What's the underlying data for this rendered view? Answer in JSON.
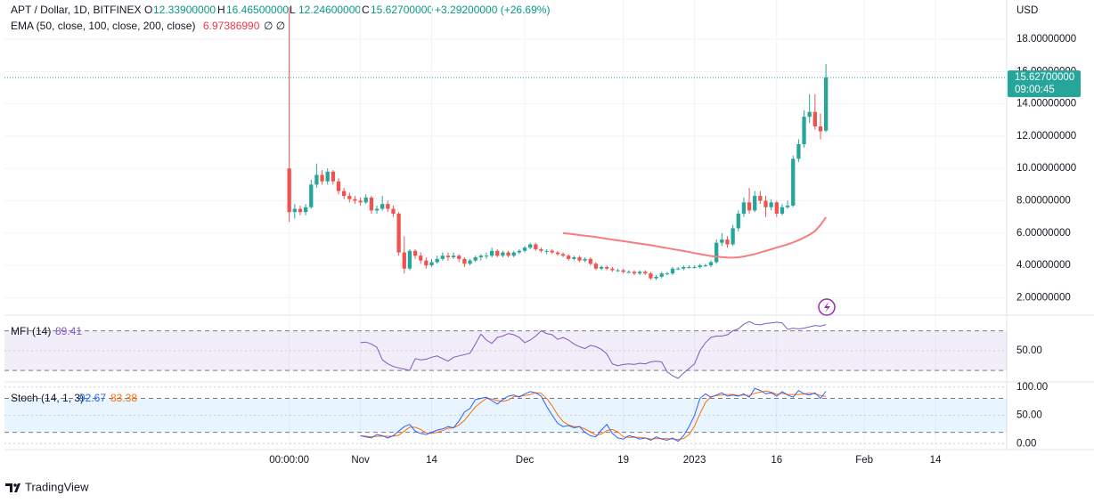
{
  "header": {
    "symbol": "APT / Dollar, 1D, BITFINEX",
    "o_label": "O",
    "o": "12.33900000",
    "h_label": "H",
    "h": "16.46500000",
    "l_label": "L",
    "l": "12.24600000",
    "c_label": "C",
    "c": "15.62700000",
    "change": "+3.29200000 (+26.69%)",
    "ema_label": "EMA (50, close, 100, close, 200, close)",
    "ema_value": "6.97386990",
    "ema_extra": "∅ ∅",
    "currency": "USD"
  },
  "price_tag": {
    "price": "15.62700000",
    "countdown": "09:00:45"
  },
  "chart_data": {
    "type": "candlestick",
    "colors": {
      "up": "#26a69a",
      "down": "#ef5350"
    },
    "xlim": [
      -52,
      131
    ],
    "xticks": [
      {
        "value": 0,
        "label": "00:00:00"
      },
      {
        "value": 13,
        "label": "Nov"
      },
      {
        "value": 26,
        "label": "14"
      },
      {
        "value": 43,
        "label": "Dec"
      },
      {
        "value": 61,
        "label": "19"
      },
      {
        "value": 74,
        "label": "2023"
      },
      {
        "value": 89,
        "label": "16"
      },
      {
        "value": 105,
        "label": "Feb"
      },
      {
        "value": 118,
        "label": "14"
      }
    ],
    "ylim": [
      1.03,
      20.15
    ],
    "yticks": [
      {
        "value": 2,
        "label": "2.00000000"
      },
      {
        "value": 4,
        "label": "4.00000000"
      },
      {
        "value": 6,
        "label": "6.00000000"
      },
      {
        "value": 8,
        "label": "8.00000000"
      },
      {
        "value": 10,
        "label": "10.00000000"
      },
      {
        "value": 12,
        "label": "12.00000000"
      },
      {
        "value": 14,
        "label": "14.00000000"
      },
      {
        "value": 16,
        "label": "16.00000000"
      },
      {
        "value": 18,
        "label": "18.00000000"
      }
    ],
    "grid": true,
    "ohlc": [
      [
        10.0,
        20.0,
        6.7,
        7.3
      ],
      [
        7.3,
        7.8,
        6.9,
        7.5
      ],
      [
        7.5,
        7.7,
        7.1,
        7.3
      ],
      [
        7.3,
        7.8,
        7.1,
        7.6
      ],
      [
        7.6,
        9.3,
        7.5,
        9.0
      ],
      [
        9.0,
        10.3,
        8.8,
        9.6
      ],
      [
        9.6,
        9.9,
        9.0,
        9.2
      ],
      [
        9.2,
        10.0,
        9.0,
        9.8
      ],
      [
        9.8,
        9.9,
        9.0,
        9.2
      ],
      [
        9.2,
        9.4,
        8.4,
        8.6
      ],
      [
        8.6,
        8.8,
        8.1,
        8.3
      ],
      [
        8.3,
        8.5,
        7.9,
        8.1
      ],
      [
        8.1,
        8.3,
        7.8,
        8.0
      ],
      [
        8.0,
        8.2,
        7.7,
        7.9
      ],
      [
        7.9,
        8.4,
        7.8,
        8.2
      ],
      [
        8.2,
        8.3,
        7.2,
        7.4
      ],
      [
        7.4,
        7.7,
        7.2,
        7.5
      ],
      [
        7.5,
        8.3,
        7.4,
        7.8
      ],
      [
        7.8,
        8.0,
        7.3,
        7.5
      ],
      [
        7.5,
        7.7,
        7.0,
        7.2
      ],
      [
        7.2,
        7.3,
        4.6,
        4.8
      ],
      [
        4.8,
        5.8,
        3.5,
        3.8
      ],
      [
        3.8,
        5.0,
        3.7,
        4.9
      ],
      [
        4.9,
        5.0,
        4.4,
        4.6
      ],
      [
        4.6,
        4.8,
        4.1,
        4.3
      ],
      [
        4.3,
        4.5,
        3.8,
        4.0
      ],
      [
        4.0,
        4.4,
        3.9,
        4.2
      ],
      [
        4.2,
        4.6,
        4.1,
        4.4
      ],
      [
        4.4,
        4.8,
        4.3,
        4.6
      ],
      [
        4.6,
        4.8,
        4.3,
        4.5
      ],
      [
        4.5,
        4.8,
        4.4,
        4.6
      ],
      [
        4.6,
        4.7,
        4.2,
        4.4
      ],
      [
        4.4,
        4.5,
        3.9,
        4.1
      ],
      [
        4.1,
        4.4,
        4.0,
        4.3
      ],
      [
        4.3,
        4.6,
        4.2,
        4.5
      ],
      [
        4.5,
        4.7,
        4.3,
        4.6
      ],
      [
        4.6,
        4.8,
        4.4,
        4.6
      ],
      [
        4.6,
        5.1,
        4.5,
        4.9
      ],
      [
        4.9,
        5.0,
        4.5,
        4.6
      ],
      [
        4.6,
        4.9,
        4.5,
        4.8
      ],
      [
        4.8,
        4.9,
        4.5,
        4.6
      ],
      [
        4.6,
        4.9,
        4.5,
        4.8
      ],
      [
        4.8,
        5.0,
        4.7,
        4.9
      ],
      [
        4.9,
        5.2,
        4.8,
        5.1
      ],
      [
        5.1,
        5.4,
        5.0,
        5.3
      ],
      [
        5.3,
        5.4,
        4.9,
        5.0
      ],
      [
        5.0,
        5.1,
        4.8,
        4.9
      ],
      [
        4.9,
        5.0,
        4.7,
        4.9
      ],
      [
        4.9,
        5.0,
        4.7,
        4.8
      ],
      [
        4.8,
        4.9,
        4.6,
        4.7
      ],
      [
        4.7,
        4.8,
        4.5,
        4.6
      ],
      [
        4.6,
        4.7,
        4.3,
        4.4
      ],
      [
        4.4,
        4.6,
        4.3,
        4.5
      ],
      [
        4.5,
        4.6,
        4.2,
        4.3
      ],
      [
        4.3,
        4.5,
        4.2,
        4.4
      ],
      [
        4.4,
        4.5,
        4.0,
        4.1
      ],
      [
        4.1,
        4.2,
        3.7,
        3.8
      ],
      [
        3.8,
        4.0,
        3.7,
        3.9
      ],
      [
        3.9,
        4.0,
        3.7,
        3.8
      ],
      [
        3.8,
        3.9,
        3.6,
        3.7
      ],
      [
        3.7,
        3.8,
        3.6,
        3.7
      ],
      [
        3.7,
        3.8,
        3.5,
        3.6
      ],
      [
        3.6,
        3.7,
        3.5,
        3.6
      ],
      [
        3.6,
        3.7,
        3.4,
        3.5
      ],
      [
        3.5,
        3.7,
        3.4,
        3.6
      ],
      [
        3.6,
        3.7,
        3.4,
        3.5
      ],
      [
        3.5,
        3.6,
        3.1,
        3.2
      ],
      [
        3.2,
        3.4,
        3.1,
        3.3
      ],
      [
        3.3,
        3.6,
        3.2,
        3.5
      ],
      [
        3.5,
        3.6,
        3.4,
        3.5
      ],
      [
        3.5,
        3.9,
        3.4,
        3.8
      ],
      [
        3.8,
        3.9,
        3.7,
        3.8
      ],
      [
        3.8,
        4.0,
        3.7,
        3.9
      ],
      [
        3.9,
        4.0,
        3.8,
        3.9
      ],
      [
        3.9,
        4.0,
        3.8,
        3.9
      ],
      [
        3.9,
        4.1,
        3.8,
        4.0
      ],
      [
        4.0,
        4.1,
        3.9,
        4.0
      ],
      [
        4.0,
        4.3,
        3.9,
        4.2
      ],
      [
        4.2,
        5.6,
        4.1,
        5.4
      ],
      [
        5.4,
        6.0,
        5.2,
        5.6
      ],
      [
        5.6,
        5.8,
        5.1,
        5.3
      ],
      [
        5.3,
        6.5,
        5.2,
        6.3
      ],
      [
        6.3,
        7.4,
        6.1,
        7.2
      ],
      [
        7.2,
        8.2,
        7.0,
        7.9
      ],
      [
        7.9,
        8.8,
        7.2,
        7.4
      ],
      [
        7.4,
        8.6,
        7.3,
        8.3
      ],
      [
        8.3,
        8.6,
        7.8,
        8.0
      ],
      [
        8.0,
        8.3,
        7.0,
        7.6
      ],
      [
        7.6,
        8.1,
        7.4,
        7.9
      ],
      [
        7.9,
        8.0,
        7.0,
        7.2
      ],
      [
        7.2,
        7.8,
        7.1,
        7.6
      ],
      [
        7.6,
        8.0,
        7.5,
        7.7
      ],
      [
        7.7,
        10.8,
        7.6,
        10.6
      ],
      [
        10.6,
        11.8,
        10.4,
        11.5
      ],
      [
        11.5,
        13.6,
        11.3,
        13.2
      ],
      [
        13.2,
        14.6,
        12.8,
        13.5
      ],
      [
        13.5,
        14.6,
        12.4,
        12.6
      ],
      [
        12.6,
        13.4,
        11.8,
        12.3
      ],
      [
        12.339,
        16.465,
        12.246,
        15.627
      ]
    ],
    "series": [
      {
        "name": "EMA",
        "color": "#f77c80",
        "values": [
          null,
          null,
          null,
          null,
          null,
          null,
          null,
          null,
          null,
          null,
          null,
          null,
          null,
          null,
          null,
          null,
          null,
          null,
          null,
          null,
          null,
          null,
          null,
          null,
          null,
          null,
          null,
          null,
          null,
          null,
          null,
          null,
          null,
          null,
          null,
          null,
          null,
          null,
          null,
          null,
          null,
          null,
          null,
          null,
          null,
          null,
          null,
          null,
          null,
          null,
          6.0,
          5.96,
          5.92,
          5.88,
          5.84,
          5.8,
          5.75,
          5.7,
          5.65,
          5.6,
          5.55,
          5.5,
          5.45,
          5.4,
          5.35,
          5.3,
          5.25,
          5.19,
          5.13,
          5.07,
          5.01,
          4.95,
          4.89,
          4.83,
          4.76,
          4.7,
          4.64,
          4.58,
          4.54,
          4.51,
          4.49,
          4.48,
          4.5,
          4.55,
          4.62,
          4.7,
          4.8,
          4.9,
          5.0,
          5.1,
          5.2,
          5.3,
          5.42,
          5.56,
          5.72,
          5.9,
          6.12,
          6.5,
          6.9738699
        ]
      }
    ],
    "indicators": [
      {
        "name": "MFI (14)",
        "value_label": "89.41",
        "color": "#7e57c2",
        "band_color": "rgba(126,87,194,0.1)",
        "ylim": [
          4,
          101
        ],
        "levels": [
          80,
          20
        ],
        "yticks": [
          {
            "value": 50,
            "label": "50.00"
          }
        ],
        "series": [
          {
            "name": "MFI",
            "color": "#7e57c2",
            "values": [
              null,
              null,
              null,
              null,
              null,
              null,
              null,
              null,
              null,
              null,
              null,
              null,
              null,
              62,
              63,
              60,
              55,
              36,
              30,
              26,
              24,
              22,
              20,
              38,
              36,
              37,
              40,
              42,
              38,
              34,
              40,
              42,
              44,
              46,
              60,
              75,
              66,
              61,
              70,
              72,
              76,
              74,
              70,
              62,
              66,
              72,
              80,
              76,
              74,
              67,
              70,
              66,
              60,
              56,
              53,
              58,
              56,
              52,
              45,
              30,
              27,
              29,
              30,
              29,
              31,
              30,
              33,
              34,
              33,
              18,
              12,
              8,
              16,
              23,
              30,
              50,
              62,
              70,
              72,
              72,
              74,
              80,
              83,
              90,
              94,
              90,
              89,
              91,
              92,
              93,
              92,
              82,
              84,
              83,
              84,
              86,
              88,
              87,
              89.41
            ]
          }
        ]
      },
      {
        "name": "Stoch (14, 1, 3)",
        "value_label": "92.67",
        "value_label2": "83.38",
        "color": "#2962ff",
        "band_color": "rgba(33,150,243,0.1)",
        "ylim": [
          -9,
          106
        ],
        "levels": [
          80,
          20
        ],
        "yticks": [
          {
            "value": 100,
            "label": "100.00"
          },
          {
            "value": 50,
            "label": "50.00"
          },
          {
            "value": 0,
            "label": "0.00"
          }
        ],
        "series": [
          {
            "name": "%K",
            "color": "#2962ff",
            "values": [
              null,
              null,
              null,
              null,
              null,
              null,
              null,
              null,
              null,
              null,
              null,
              null,
              null,
              14,
              12,
              10,
              16,
              14,
              10,
              14,
              22,
              30,
              34,
              22,
              18,
              16,
              20,
              24,
              26,
              30,
              28,
              40,
              56,
              62,
              78,
              80,
              82,
              76,
              70,
              78,
              84,
              86,
              82,
              88,
              92,
              90,
              84,
              66,
              50,
              36,
              30,
              32,
              28,
              30,
              20,
              14,
              12,
              24,
              34,
              18,
              10,
              8,
              14,
              12,
              8,
              10,
              6,
              12,
              8,
              6,
              10,
              4,
              14,
              30,
              50,
              80,
              88,
              82,
              86,
              90,
              84,
              86,
              84,
              88,
              82,
              98,
              94,
              88,
              90,
              84,
              92,
              86,
              82,
              94,
              88,
              86,
              90,
              80,
              92.67
            ]
          },
          {
            "name": "%D",
            "color": "#ff6d00",
            "values": [
              null,
              null,
              null,
              null,
              null,
              null,
              null,
              null,
              null,
              null,
              null,
              null,
              null,
              14,
              13,
              12,
              13,
              13,
              13,
              13,
              15,
              22,
              29,
              29,
              25,
              19,
              18,
              20,
              23,
              27,
              28,
              33,
              41,
              53,
              65,
              73,
              80,
              79,
              76,
              75,
              77,
              83,
              84,
              85,
              87,
              90,
              89,
              80,
              67,
              51,
              39,
              33,
              30,
              30,
              26,
              21,
              15,
              17,
              23,
              25,
              21,
              12,
              11,
              11,
              11,
              10,
              8,
              9,
              9,
              9,
              8,
              7,
              9,
              16,
              31,
              53,
              73,
              83,
              85,
              86,
              87,
              87,
              85,
              86,
              85,
              89,
              91,
              93,
              91,
              87,
              89,
              87,
              87,
              87,
              88,
              89,
              88,
              85,
              83.38
            ]
          }
        ]
      }
    ]
  },
  "footer": {
    "brand": "TradingView"
  }
}
